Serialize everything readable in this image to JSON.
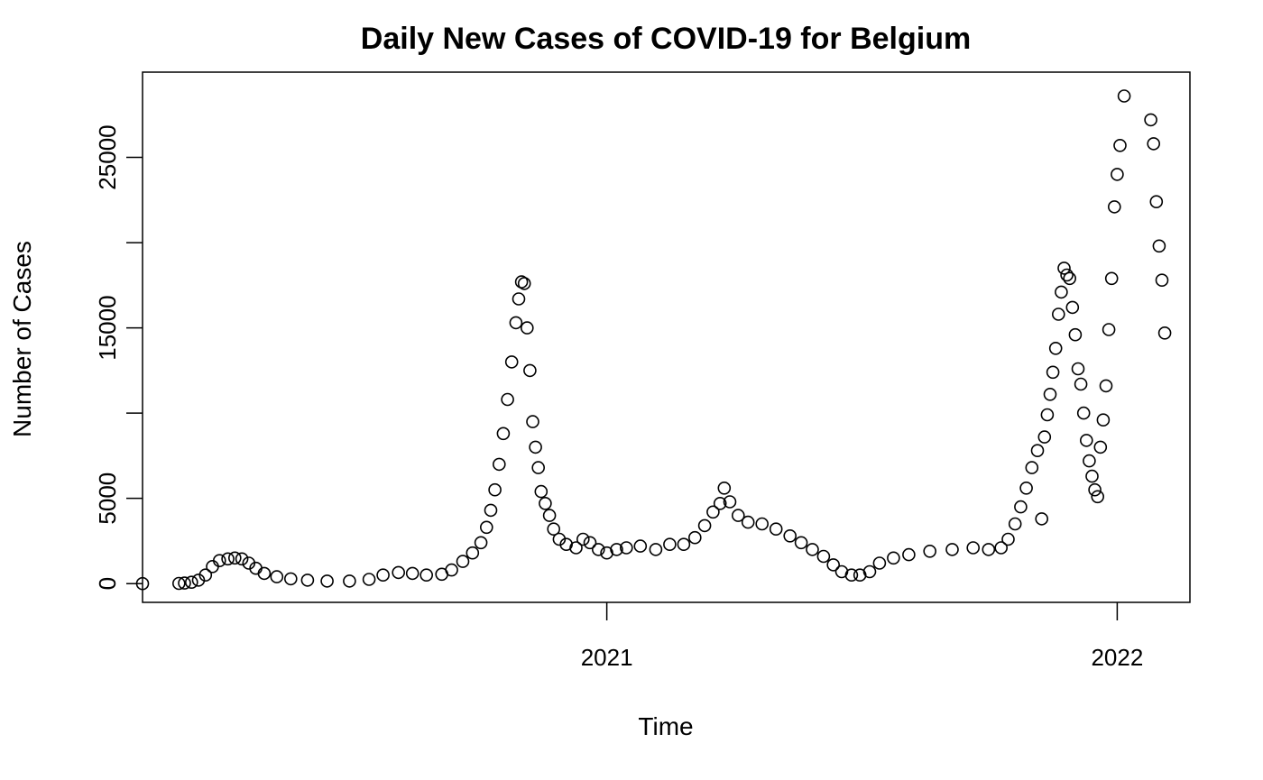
{
  "chart_data": {
    "type": "scatter",
    "title": "Daily New Cases of COVID-19 for Belgium",
    "xlabel": "Time",
    "ylabel": "Number of Cases",
    "x_ticks": [
      {
        "label": "2021",
        "date": "2021-01-01"
      },
      {
        "label": "2022",
        "date": "2022-01-01"
      }
    ],
    "y_ticks": [
      {
        "label": "0",
        "value": 0
      },
      {
        "label": "5000",
        "value": 5000
      },
      {
        "label": "15000",
        "value": 15000
      },
      {
        "label": "25000",
        "value": 25000
      }
    ],
    "y_minor_ticks": [
      10000,
      20000
    ],
    "xlim": [
      "2020-02-04",
      "2022-02-22"
    ],
    "ylim": [
      -1100,
      30000
    ],
    "grid": false,
    "marker": "open-circle",
    "series": [
      {
        "points": [
          [
            "2020-02-04",
            0
          ],
          [
            "2020-03-01",
            10
          ],
          [
            "2020-03-05",
            30
          ],
          [
            "2020-03-10",
            80
          ],
          [
            "2020-03-15",
            200
          ],
          [
            "2020-03-20",
            500
          ],
          [
            "2020-03-25",
            1000
          ],
          [
            "2020-03-30",
            1350
          ],
          [
            "2020-04-05",
            1450
          ],
          [
            "2020-04-10",
            1500
          ],
          [
            "2020-04-15",
            1450
          ],
          [
            "2020-04-20",
            1200
          ],
          [
            "2020-04-25",
            900
          ],
          [
            "2020-05-01",
            600
          ],
          [
            "2020-05-10",
            400
          ],
          [
            "2020-05-20",
            280
          ],
          [
            "2020-06-01",
            200
          ],
          [
            "2020-06-15",
            150
          ],
          [
            "2020-07-01",
            150
          ],
          [
            "2020-07-15",
            250
          ],
          [
            "2020-07-25",
            500
          ],
          [
            "2020-08-05",
            650
          ],
          [
            "2020-08-15",
            600
          ],
          [
            "2020-08-25",
            500
          ],
          [
            "2020-09-05",
            550
          ],
          [
            "2020-09-12",
            800
          ],
          [
            "2020-09-20",
            1300
          ],
          [
            "2020-09-27",
            1800
          ],
          [
            "2020-10-03",
            2400
          ],
          [
            "2020-10-07",
            3300
          ],
          [
            "2020-10-10",
            4300
          ],
          [
            "2020-10-13",
            5500
          ],
          [
            "2020-10-16",
            7000
          ],
          [
            "2020-10-19",
            8800
          ],
          [
            "2020-10-22",
            10800
          ],
          [
            "2020-10-25",
            13000
          ],
          [
            "2020-10-28",
            15300
          ],
          [
            "2020-10-30",
            16700
          ],
          [
            "2020-11-01",
            17700
          ],
          [
            "2020-11-03",
            17600
          ],
          [
            "2020-11-05",
            15000
          ],
          [
            "2020-11-07",
            12500
          ],
          [
            "2020-11-09",
            9500
          ],
          [
            "2020-11-11",
            8000
          ],
          [
            "2020-11-13",
            6800
          ],
          [
            "2020-11-15",
            5400
          ],
          [
            "2020-11-18",
            4700
          ],
          [
            "2020-11-21",
            4000
          ],
          [
            "2020-11-24",
            3200
          ],
          [
            "2020-11-28",
            2600
          ],
          [
            "2020-12-03",
            2300
          ],
          [
            "2020-12-10",
            2100
          ],
          [
            "2020-12-15",
            2600
          ],
          [
            "2020-12-20",
            2400
          ],
          [
            "2020-12-26",
            2000
          ],
          [
            "2021-01-01",
            1800
          ],
          [
            "2021-01-08",
            2000
          ],
          [
            "2021-01-15",
            2100
          ],
          [
            "2021-01-25",
            2200
          ],
          [
            "2021-02-05",
            2000
          ],
          [
            "2021-02-15",
            2300
          ],
          [
            "2021-02-25",
            2300
          ],
          [
            "2021-03-05",
            2700
          ],
          [
            "2021-03-12",
            3400
          ],
          [
            "2021-03-18",
            4200
          ],
          [
            "2021-03-23",
            4700
          ],
          [
            "2021-03-26",
            5600
          ],
          [
            "2021-03-30",
            4800
          ],
          [
            "2021-04-05",
            4000
          ],
          [
            "2021-04-12",
            3600
          ],
          [
            "2021-04-22",
            3500
          ],
          [
            "2021-05-02",
            3200
          ],
          [
            "2021-05-12",
            2800
          ],
          [
            "2021-05-20",
            2400
          ],
          [
            "2021-05-28",
            2000
          ],
          [
            "2021-06-05",
            1600
          ],
          [
            "2021-06-12",
            1100
          ],
          [
            "2021-06-18",
            700
          ],
          [
            "2021-06-25",
            500
          ],
          [
            "2021-07-01",
            500
          ],
          [
            "2021-07-08",
            700
          ],
          [
            "2021-07-15",
            1200
          ],
          [
            "2021-07-25",
            1500
          ],
          [
            "2021-08-05",
            1700
          ],
          [
            "2021-08-20",
            1900
          ],
          [
            "2021-09-05",
            2000
          ],
          [
            "2021-09-20",
            2100
          ],
          [
            "2021-10-01",
            2000
          ],
          [
            "2021-10-10",
            2100
          ],
          [
            "2021-10-15",
            2600
          ],
          [
            "2021-10-20",
            3500
          ],
          [
            "2021-10-24",
            4500
          ],
          [
            "2021-10-28",
            5600
          ],
          [
            "2021-11-01",
            6800
          ],
          [
            "2021-11-05",
            7800
          ],
          [
            "2021-11-08",
            3800
          ],
          [
            "2021-11-10",
            8600
          ],
          [
            "2021-11-12",
            9900
          ],
          [
            "2021-11-14",
            11100
          ],
          [
            "2021-11-16",
            12400
          ],
          [
            "2021-11-18",
            13800
          ],
          [
            "2021-11-20",
            15800
          ],
          [
            "2021-11-22",
            17100
          ],
          [
            "2021-11-24",
            18500
          ],
          [
            "2021-11-26",
            18100
          ],
          [
            "2021-11-28",
            17900
          ],
          [
            "2021-11-30",
            16200
          ],
          [
            "2021-12-02",
            14600
          ],
          [
            "2021-12-04",
            12600
          ],
          [
            "2021-12-06",
            11700
          ],
          [
            "2021-12-08",
            10000
          ],
          [
            "2021-12-10",
            8400
          ],
          [
            "2021-12-12",
            7200
          ],
          [
            "2021-12-14",
            6300
          ],
          [
            "2021-12-16",
            5500
          ],
          [
            "2021-12-18",
            5100
          ],
          [
            "2021-12-20",
            8000
          ],
          [
            "2021-12-22",
            9600
          ],
          [
            "2021-12-24",
            11600
          ],
          [
            "2021-12-26",
            14900
          ],
          [
            "2021-12-28",
            17900
          ],
          [
            "2021-12-30",
            22100
          ],
          [
            "2022-01-01",
            24000
          ],
          [
            "2022-01-03",
            25700
          ],
          [
            "2022-01-06",
            28600
          ],
          [
            "2022-01-25",
            27200
          ],
          [
            "2022-01-27",
            25800
          ],
          [
            "2022-01-29",
            22400
          ],
          [
            "2022-01-31",
            19800
          ],
          [
            "2022-02-02",
            17800
          ],
          [
            "2022-02-04",
            14700
          ]
        ]
      }
    ]
  }
}
